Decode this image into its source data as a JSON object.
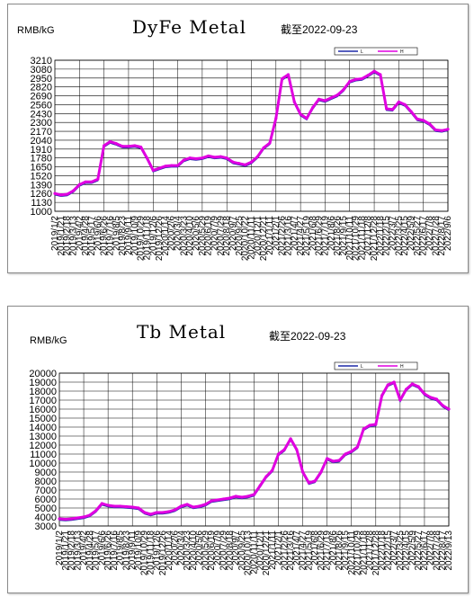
{
  "chart_data": [
    {
      "type": "line",
      "title": "DyFe Metal",
      "unit": "RMB/kG",
      "as_of": "截至2022-09-23",
      "ylim": [
        1000,
        3210
      ],
      "yticks": [
        1000,
        1130,
        1260,
        1390,
        1520,
        1650,
        1780,
        1910,
        2040,
        2170,
        2300,
        2430,
        2560,
        2690,
        2820,
        2950,
        3080,
        3210
      ],
      "x_labels": [
        "2019/1/2",
        "2019/1/21",
        "2019/2/18",
        "2019/3/13",
        "2019/4/2",
        "2019/4/28",
        "2019/5/17",
        "2019/6/6",
        "2019/6/26",
        "2019/7/16",
        "2019/8/5",
        "2019/8/23",
        "2019/9/11",
        "2019/10/9",
        "2019/10/29",
        "2019/11/18",
        "2019/12/6",
        "2019/12/26",
        "2020/1/14",
        "2020/2/6",
        "2020/3/4",
        "2020/3/23",
        "2020/4/10",
        "2020/5/6",
        "2020/5/29",
        "2020/6/19",
        "2020/7/9",
        "2020/7/29",
        "2020/8/18",
        "2020/9/7",
        "2020/9/25",
        "2020/10/22",
        "2020/11/11",
        "2020/12/1",
        "2020/12/21",
        "2021/1/11",
        "2021/2/1",
        "2021/2/26",
        "2021/3/16",
        "2021/4/7",
        "2021/4/27",
        "2021/5/19",
        "2021/6/8",
        "2021/6/29",
        "2021/7/19",
        "2021/8/6",
        "2021/8/26",
        "2021/9/15",
        "2021/10/11",
        "2021/10/29",
        "2021/11/18",
        "2021/12/8",
        "2021/12/28",
        "2022/1/18",
        "2022/2/15",
        "2022/3/7",
        "2022/3/25",
        "2022/4/15",
        "2022/5/9",
        "2022/5/27",
        "2022/6/17",
        "2022/7/8",
        "2022/7/28",
        "2022/8/17",
        "2022/9/6"
      ],
      "grid": true,
      "legend": "top-right",
      "series": [
        {
          "name": "L",
          "color": "#1f2aa8"
        },
        {
          "name": "H",
          "color": "#e000e0"
        }
      ],
      "values": [
        1260,
        1240,
        1250,
        1300,
        1390,
        1430,
        1430,
        1470,
        1960,
        2020,
        1990,
        1950,
        1950,
        1960,
        1940,
        1780,
        1600,
        1630,
        1660,
        1670,
        1670,
        1750,
        1780,
        1770,
        1780,
        1810,
        1790,
        1800,
        1780,
        1720,
        1700,
        1680,
        1720,
        1800,
        1930,
        2000,
        2360,
        2940,
        3000,
        2600,
        2420,
        2360,
        2520,
        2640,
        2620,
        2660,
        2700,
        2780,
        2900,
        2930,
        2940,
        2990,
        3050,
        3000,
        2500,
        2490,
        2600,
        2560,
        2460,
        2350,
        2330,
        2280,
        2190,
        2180,
        2200
      ]
    },
    {
      "type": "line",
      "title": "Tb Metal",
      "unit": "RMB/kG",
      "as_of": "截至2022-09-23",
      "ylim": [
        3000,
        20000
      ],
      "yticks": [
        3000,
        4000,
        5000,
        6000,
        7000,
        8000,
        9000,
        10000,
        11000,
        12000,
        13000,
        14000,
        15000,
        16000,
        17000,
        18000,
        19000,
        20000
      ],
      "x_labels": [
        "2019/1/2",
        "2019/1/21",
        "2019/2/18",
        "2019/3/13",
        "2019/4/2",
        "2019/4/28",
        "2019/5/17",
        "2019/6/6",
        "2019/6/26",
        "2019/7/16",
        "2019/8/5",
        "2019/8/23",
        "2019/9/11",
        "2019/10/9",
        "2019/10/29",
        "2019/11/18",
        "2019/12/6",
        "2019/12/26",
        "2020/1/14",
        "2020/2/6",
        "2020/3/4",
        "2020/3/23",
        "2020/4/10",
        "2020/5/6",
        "2020/5/29",
        "2020/6/19",
        "2020/7/9",
        "2020/7/29",
        "2020/8/18",
        "2020/9/7",
        "2020/9/25",
        "2020/10/13",
        "2020/11/11",
        "2020/12/1",
        "2020/12/21",
        "2021/1/11",
        "2021/2/1",
        "2021/2/26",
        "2021/3/16",
        "2021/4/7",
        "2021/4/27",
        "2021/5/19",
        "2021/6/8",
        "2021/6/29",
        "2021/7/19",
        "2021/8/6",
        "2021/8/26",
        "2021/9/15",
        "2021/10/11",
        "2021/10/29",
        "2021/11/18",
        "2021/12/8",
        "2021/12/28",
        "2022/1/18",
        "2022/2/15",
        "2022/3/7",
        "2022/3/25",
        "2022/4/15",
        "2022/5/9",
        "2022/5/27",
        "2022/6/17",
        "2022/7/8",
        "2022/7/28",
        "2022/8/17",
        "2022/9/13"
      ],
      "grid": true,
      "legend": "top-right",
      "series": [
        {
          "name": "L",
          "color": "#1f2aa8"
        },
        {
          "name": "H",
          "color": "#e000e0"
        }
      ],
      "values": [
        3800,
        3750,
        3800,
        3900,
        4000,
        4200,
        4700,
        5500,
        5300,
        5200,
        5200,
        5150,
        5100,
        5000,
        4500,
        4300,
        4500,
        4500,
        4600,
        4800,
        5200,
        5400,
        5100,
        5200,
        5400,
        5800,
        5900,
        6000,
        6100,
        6300,
        6200,
        6300,
        6500,
        7500,
        8500,
        9200,
        11000,
        11500,
        12700,
        11500,
        9000,
        7800,
        8000,
        9000,
        10500,
        10200,
        10300,
        11000,
        11300,
        11800,
        13800,
        14200,
        14300,
        17500,
        18700,
        19000,
        17000,
        18200,
        18800,
        18500,
        17700,
        17300,
        17100,
        16400,
        16000
      ]
    }
  ]
}
